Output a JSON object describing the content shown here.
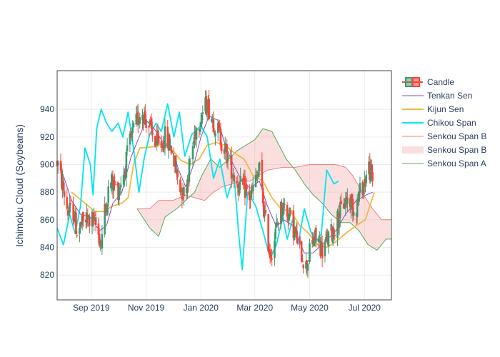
{
  "chart_data": {
    "type": "candlestick",
    "ylabel": "Ichimoku Cloud (Soybeans)",
    "xlabel": "",
    "x_range": [
      "2019-07-25",
      "2020-07-31"
    ],
    "ylim": [
      802,
      968
    ],
    "x_ticks": [
      {
        "date": "2019-09-01",
        "label": "Sep 2019"
      },
      {
        "date": "2019-11-01",
        "label": "Nov 2019"
      },
      {
        "date": "2020-01-01",
        "label": "Jan 2020"
      },
      {
        "date": "2020-03-01",
        "label": "Mar 2020"
      },
      {
        "date": "2020-05-01",
        "label": "May 2020"
      },
      {
        "date": "2020-07-01",
        "label": "Jul 2020"
      }
    ],
    "y_ticks": [
      820,
      840,
      860,
      880,
      900,
      920,
      940
    ],
    "grid": true,
    "legend_position": "right",
    "colors": {
      "increasing": "#3d9970",
      "decreasing": "#ff4136",
      "tenkan": "#7b52c9",
      "kijun": "#f2b740",
      "chikou": "#00e5ee",
      "senkou_b": "#f08080",
      "senkou_a": "#4caf50",
      "cloud": "rgba(240,128,128,0.25)"
    },
    "legend": [
      {
        "label": "Candle",
        "kind": "candle"
      },
      {
        "label": "Tenkan Sen",
        "kind": "line",
        "color_key": "tenkan"
      },
      {
        "label": "Kijun Sen",
        "kind": "line",
        "color_key": "kijun"
      },
      {
        "label": "Chikou Span",
        "kind": "line",
        "color_key": "chikou"
      },
      {
        "label": "Senkou Span B",
        "kind": "line",
        "color_key": "senkou_b"
      },
      {
        "label": "Senkou Span B",
        "kind": "fill",
        "color_key": "cloud"
      },
      {
        "label": "Senkou Span A",
        "kind": "line",
        "color_key": "senkou_a"
      }
    ],
    "close_anchors": [
      [
        "2019-07-25",
        902
      ],
      [
        "2019-08-01",
        882
      ],
      [
        "2019-08-06",
        866
      ],
      [
        "2019-08-12",
        866
      ],
      [
        "2019-08-16",
        852
      ],
      [
        "2019-08-26",
        860
      ],
      [
        "2019-09-02",
        860
      ],
      [
        "2019-09-06",
        856
      ],
      [
        "2019-09-12",
        843
      ],
      [
        "2019-09-16",
        866
      ],
      [
        "2019-09-22",
        888
      ],
      [
        "2019-10-01",
        882
      ],
      [
        "2019-10-08",
        896
      ],
      [
        "2019-10-14",
        916
      ],
      [
        "2019-10-21",
        930
      ],
      [
        "2019-10-27",
        940
      ],
      [
        "2019-11-03",
        930
      ],
      [
        "2019-11-10",
        918
      ],
      [
        "2019-11-16",
        912
      ],
      [
        "2019-11-22",
        920
      ],
      [
        "2019-11-29",
        912
      ],
      [
        "2019-12-04",
        896
      ],
      [
        "2019-12-09",
        884
      ],
      [
        "2019-12-14",
        878
      ],
      [
        "2019-12-20",
        902
      ],
      [
        "2019-12-26",
        925
      ],
      [
        "2020-01-02",
        937
      ],
      [
        "2020-01-08",
        944
      ],
      [
        "2020-01-14",
        933
      ],
      [
        "2020-01-20",
        924
      ],
      [
        "2020-01-26",
        914
      ],
      [
        "2020-02-01",
        903
      ],
      [
        "2020-02-07",
        892
      ],
      [
        "2020-02-13",
        884
      ],
      [
        "2020-02-19",
        882
      ],
      [
        "2020-02-25",
        876
      ],
      [
        "2020-03-02",
        888
      ],
      [
        "2020-03-06",
        896
      ],
      [
        "2020-03-10",
        874
      ],
      [
        "2020-03-14",
        852
      ],
      [
        "2020-03-18",
        836
      ],
      [
        "2020-03-22",
        842
      ],
      [
        "2020-03-28",
        866
      ],
      [
        "2020-04-03",
        870
      ],
      [
        "2020-04-09",
        862
      ],
      [
        "2020-04-15",
        850
      ],
      [
        "2020-04-21",
        838
      ],
      [
        "2020-04-27",
        826
      ],
      [
        "2020-05-03",
        842
      ],
      [
        "2020-05-09",
        848
      ],
      [
        "2020-05-15",
        838
      ],
      [
        "2020-05-21",
        846
      ],
      [
        "2020-05-27",
        852
      ],
      [
        "2020-06-02",
        862
      ],
      [
        "2020-06-08",
        872
      ],
      [
        "2020-06-14",
        876
      ],
      [
        "2020-06-20",
        866
      ],
      [
        "2020-06-26",
        880
      ],
      [
        "2020-07-02",
        890
      ],
      [
        "2020-07-06",
        898
      ],
      [
        "2020-07-10",
        888
      ]
    ],
    "series": [
      {
        "name": "Tenkan Sen",
        "color_key": "tenkan",
        "points": [
          [
            "2019-08-01",
            892
          ],
          [
            "2019-08-10",
            874
          ],
          [
            "2019-08-20",
            864
          ],
          [
            "2019-08-31",
            862
          ],
          [
            "2019-09-10",
            852
          ],
          [
            "2019-09-18",
            856
          ],
          [
            "2019-09-25",
            872
          ],
          [
            "2019-10-05",
            880
          ],
          [
            "2019-10-15",
            905
          ],
          [
            "2019-10-23",
            918
          ],
          [
            "2019-11-01",
            932
          ],
          [
            "2019-11-10",
            926
          ],
          [
            "2019-11-20",
            916
          ],
          [
            "2019-11-30",
            910
          ],
          [
            "2019-12-08",
            895
          ],
          [
            "2019-12-15",
            884
          ],
          [
            "2019-12-25",
            902
          ],
          [
            "2020-01-01",
            920
          ],
          [
            "2020-01-10",
            935
          ],
          [
            "2020-01-20",
            932
          ],
          [
            "2020-01-28",
            914
          ],
          [
            "2020-02-06",
            900
          ],
          [
            "2020-02-16",
            888
          ],
          [
            "2020-02-25",
            883
          ],
          [
            "2020-03-06",
            888
          ],
          [
            "2020-03-15",
            870
          ],
          [
            "2020-03-25",
            855
          ],
          [
            "2020-04-02",
            860
          ],
          [
            "2020-04-12",
            856
          ],
          [
            "2020-04-25",
            836
          ],
          [
            "2020-05-05",
            836
          ],
          [
            "2020-05-18",
            844
          ],
          [
            "2020-05-30",
            852
          ],
          [
            "2020-06-10",
            864
          ],
          [
            "2020-06-22",
            874
          ],
          [
            "2020-07-03",
            878
          ],
          [
            "2020-07-10",
            880
          ]
        ]
      },
      {
        "name": "Kijun Sen",
        "color_key": "kijun",
        "points": [
          [
            "2019-08-10",
            880
          ],
          [
            "2019-08-25",
            872
          ],
          [
            "2019-09-05",
            866
          ],
          [
            "2019-09-15",
            866
          ],
          [
            "2019-09-25",
            870
          ],
          [
            "2019-10-05",
            872
          ],
          [
            "2019-10-12",
            876
          ],
          [
            "2019-10-18",
            900
          ],
          [
            "2019-10-25",
            912
          ],
          [
            "2019-11-10",
            913
          ],
          [
            "2019-11-22",
            916
          ],
          [
            "2019-12-01",
            910
          ],
          [
            "2019-12-10",
            903
          ],
          [
            "2019-12-20",
            900
          ],
          [
            "2019-12-30",
            904
          ],
          [
            "2020-01-08",
            914
          ],
          [
            "2020-01-18",
            916
          ],
          [
            "2020-01-28",
            914
          ],
          [
            "2020-02-08",
            908
          ],
          [
            "2020-02-18",
            904
          ],
          [
            "2020-02-28",
            892
          ],
          [
            "2020-03-10",
            888
          ],
          [
            "2020-03-20",
            876
          ],
          [
            "2020-03-30",
            868
          ],
          [
            "2020-04-10",
            866
          ],
          [
            "2020-04-20",
            856
          ],
          [
            "2020-04-30",
            850
          ],
          [
            "2020-05-10",
            842
          ],
          [
            "2020-05-20",
            840
          ],
          [
            "2020-05-30",
            844
          ],
          [
            "2020-06-10",
            850
          ],
          [
            "2020-06-22",
            856
          ],
          [
            "2020-07-02",
            860
          ],
          [
            "2020-07-12",
            880
          ]
        ]
      },
      {
        "name": "Chikou Span",
        "color_key": "chikou",
        "points": [
          [
            "2019-07-25",
            854
          ],
          [
            "2019-08-01",
            842
          ],
          [
            "2019-08-08",
            864
          ],
          [
            "2019-08-14",
            850
          ],
          [
            "2019-08-20",
            870
          ],
          [
            "2019-08-25",
            912
          ],
          [
            "2019-08-31",
            900
          ],
          [
            "2019-09-03",
            878
          ],
          [
            "2019-09-07",
            926
          ],
          [
            "2019-09-12",
            940
          ],
          [
            "2019-09-18",
            930
          ],
          [
            "2019-09-24",
            924
          ],
          [
            "2019-10-01",
            930
          ],
          [
            "2019-10-06",
            920
          ],
          [
            "2019-10-12",
            938
          ],
          [
            "2019-10-18",
            912
          ],
          [
            "2019-10-24",
            880
          ],
          [
            "2019-10-30",
            905
          ],
          [
            "2019-11-05",
            922
          ],
          [
            "2019-11-12",
            930
          ],
          [
            "2019-11-18",
            924
          ],
          [
            "2019-11-25",
            944
          ],
          [
            "2019-12-02",
            920
          ],
          [
            "2019-12-08",
            938
          ],
          [
            "2019-12-14",
            906
          ],
          [
            "2019-12-22",
            922
          ],
          [
            "2020-01-01",
            928
          ],
          [
            "2020-01-08",
            920
          ],
          [
            "2020-01-15",
            890
          ],
          [
            "2020-01-22",
            904
          ],
          [
            "2020-01-30",
            876
          ],
          [
            "2020-02-07",
            892
          ],
          [
            "2020-02-12",
            850
          ],
          [
            "2020-02-16",
            824
          ],
          [
            "2020-02-22",
            880
          ],
          [
            "2020-03-02",
            870
          ],
          [
            "2020-03-10",
            852
          ],
          [
            "2020-03-18",
            832
          ],
          [
            "2020-03-25",
            842
          ],
          [
            "2020-04-01",
            862
          ],
          [
            "2020-04-06",
            846
          ],
          [
            "2020-04-12",
            860
          ],
          [
            "2020-04-18",
            842
          ],
          [
            "2020-04-25",
            868
          ],
          [
            "2020-05-02",
            852
          ],
          [
            "2020-05-08",
            844
          ],
          [
            "2020-05-14",
            850
          ],
          [
            "2020-05-20",
            896
          ],
          [
            "2020-05-28",
            886
          ],
          [
            "2020-06-02",
            888
          ]
        ]
      },
      {
        "name": "Senkou Span A",
        "color_key": "senkou_a",
        "points": [
          [
            "2019-10-22",
            868
          ],
          [
            "2019-11-05",
            854
          ],
          [
            "2019-11-15",
            848
          ],
          [
            "2019-11-22",
            862
          ],
          [
            "2019-12-05",
            868
          ],
          [
            "2019-12-15",
            874
          ],
          [
            "2019-12-25",
            880
          ],
          [
            "2020-01-02",
            892
          ],
          [
            "2020-01-12",
            904
          ],
          [
            "2020-01-22",
            898
          ],
          [
            "2020-02-01",
            904
          ],
          [
            "2020-02-10",
            910
          ],
          [
            "2020-02-20",
            914
          ],
          [
            "2020-03-01",
            918
          ],
          [
            "2020-03-10",
            926
          ],
          [
            "2020-03-20",
            924
          ],
          [
            "2020-03-28",
            914
          ],
          [
            "2020-04-05",
            904
          ],
          [
            "2020-04-15",
            896
          ],
          [
            "2020-04-25",
            886
          ],
          [
            "2020-05-05",
            878
          ],
          [
            "2020-05-15",
            872
          ],
          [
            "2020-05-25",
            864
          ],
          [
            "2020-06-05",
            858
          ],
          [
            "2020-06-15",
            858
          ],
          [
            "2020-06-25",
            852
          ],
          [
            "2020-07-05",
            842
          ],
          [
            "2020-07-15",
            838
          ],
          [
            "2020-07-25",
            846
          ],
          [
            "2020-07-31",
            846
          ]
        ]
      },
      {
        "name": "Senkou Span B",
        "color_key": "senkou_b",
        "points": [
          [
            "2019-10-22",
            868
          ],
          [
            "2019-11-05",
            868
          ],
          [
            "2019-11-15",
            874
          ],
          [
            "2019-12-01",
            874
          ],
          [
            "2019-12-15",
            878
          ],
          [
            "2019-12-25",
            876
          ],
          [
            "2020-01-05",
            874
          ],
          [
            "2020-01-15",
            880
          ],
          [
            "2020-01-25",
            884
          ],
          [
            "2020-02-05",
            886
          ],
          [
            "2020-02-15",
            888
          ],
          [
            "2020-02-25",
            888
          ],
          [
            "2020-03-05",
            892
          ],
          [
            "2020-03-15",
            896
          ],
          [
            "2020-04-01",
            898
          ],
          [
            "2020-04-15",
            898
          ],
          [
            "2020-05-01",
            900
          ],
          [
            "2020-05-15",
            900
          ],
          [
            "2020-05-30",
            900
          ],
          [
            "2020-06-10",
            898
          ],
          [
            "2020-06-18",
            892
          ],
          [
            "2020-06-25",
            884
          ],
          [
            "2020-07-02",
            876
          ],
          [
            "2020-07-10",
            868
          ],
          [
            "2020-07-20",
            860
          ],
          [
            "2020-07-31",
            860
          ]
        ]
      }
    ]
  }
}
